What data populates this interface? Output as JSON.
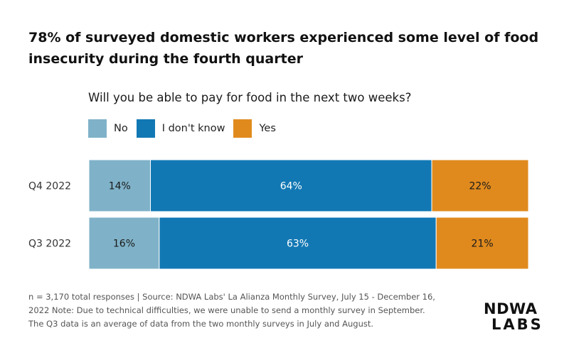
{
  "header": {
    "title": "78% of surveyed domestic workers experienced some level of food insecurity during the fourth quarter"
  },
  "colors": {
    "No": "#7fb2c8",
    "I don't know": "#1278b4",
    "Yes": "#e08a1e"
  },
  "chart_data": {
    "type": "bar",
    "orientation": "horizontal",
    "stacked": true,
    "percent": true,
    "title": "Will you be able to pay for food in the next two weeks?",
    "legend_position": "top-left",
    "grid": false,
    "categories": [
      "Q4 2022",
      "Q3 2022"
    ],
    "series": [
      {
        "name": "No",
        "values": [
          14,
          16
        ],
        "labels": [
          "14%",
          "16%"
        ]
      },
      {
        "name": "I don't know",
        "values": [
          64,
          63
        ],
        "labels": [
          "64%",
          "63%"
        ]
      },
      {
        "name": "Yes",
        "values": [
          22,
          21
        ],
        "labels": [
          "22%",
          "21%"
        ]
      }
    ],
    "xlim": [
      0,
      100
    ]
  },
  "footnote": {
    "line1": "n = 3,170 total responses  |  Source: NDWA Labs' La Alianza Monthly Survey, July 15 - December 16,",
    "line2": "2022 Note: Due to technical difficulties, we were unable to send a monthly survey in September.",
    "line3": "The Q3 data is an average of data from the two monthly surveys in July and August."
  },
  "logo": {
    "line1": "NDWA",
    "line2": "LABS"
  }
}
